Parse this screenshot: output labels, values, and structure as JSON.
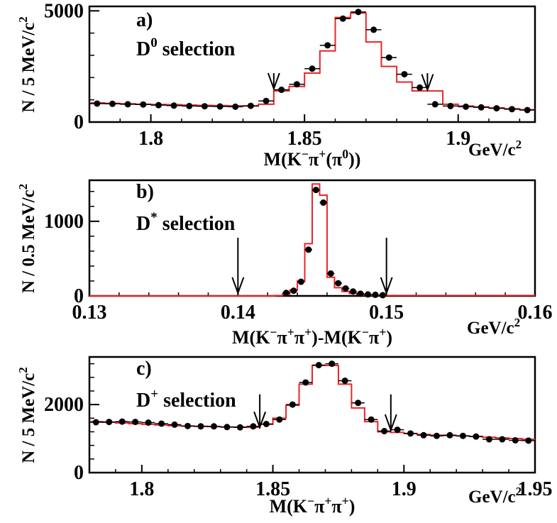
{
  "colors": {
    "histogram": "#e8262a",
    "points": "#000000",
    "frame": "#000000"
  },
  "chart_data": [
    {
      "type": "line",
      "panel_label": "a)",
      "title_main": "D",
      "title_sup": "0",
      "title_rest": " selection",
      "xlabel_parts": [
        {
          "t": "M(K"
        },
        {
          "t": "−",
          "sup": true
        },
        {
          "t": "π"
        },
        {
          "t": "+",
          "sup": true
        },
        {
          "t": "(π"
        },
        {
          "t": "0",
          "sup": true
        },
        {
          "t": "))"
        }
      ],
      "units_parts": [
        {
          "t": "GeV/c"
        },
        {
          "t": "2",
          "sup": true
        }
      ],
      "ylabel_parts": [
        {
          "t": "N / 5 MeV/c"
        },
        {
          "t": "2",
          "sup": true
        }
      ],
      "xlim": [
        1.78,
        1.925
      ],
      "ylim": [
        0,
        5200
      ],
      "xticks": [
        1.8,
        1.85,
        1.9
      ],
      "xtick_labels": [
        "1.8",
        "1.85",
        "1.9"
      ],
      "minor_step": 0.01,
      "yticks": [
        0,
        5000
      ],
      "ytick_labels": [
        "0",
        "5000"
      ],
      "arrows": [
        {
          "x": 1.84,
          "y_top": 2200,
          "y_tip": 1500
        },
        {
          "x": 1.89,
          "y_top": 2200,
          "y_tip": 1450
        }
      ],
      "histogram": {
        "edges": [
          1.78,
          1.785,
          1.79,
          1.795,
          1.8,
          1.805,
          1.81,
          1.815,
          1.82,
          1.825,
          1.83,
          1.835,
          1.84,
          1.845,
          1.85,
          1.855,
          1.86,
          1.865,
          1.87,
          1.875,
          1.88,
          1.885,
          1.89,
          1.895,
          1.9,
          1.905,
          1.91,
          1.915,
          1.92,
          1.925
        ],
        "values": [
          860,
          840,
          820,
          800,
          790,
          780,
          760,
          750,
          740,
          730,
          720,
          800,
          1400,
          1600,
          2200,
          3200,
          4700,
          4900,
          3600,
          2500,
          1800,
          1400,
          1400,
          800,
          720,
          680,
          640,
          600,
          560
        ]
      },
      "points": {
        "x": [
          1.7825,
          1.7875,
          1.7925,
          1.7975,
          1.8025,
          1.8075,
          1.8125,
          1.8175,
          1.8225,
          1.8275,
          1.8325,
          1.8375,
          1.8425,
          1.8475,
          1.8525,
          1.8575,
          1.8625,
          1.8675,
          1.8725,
          1.8775,
          1.8825,
          1.8875,
          1.8925,
          1.8975,
          1.9025,
          1.9075,
          1.9125,
          1.9175,
          1.9225
        ],
        "y": [
          830,
          820,
          800,
          790,
          760,
          740,
          720,
          710,
          700,
          690,
          730,
          950,
          1450,
          1700,
          2400,
          3450,
          4650,
          4950,
          4150,
          2900,
          2150,
          1550,
          800,
          720,
          690,
          660,
          620,
          580,
          540
        ]
      }
    },
    {
      "type": "line",
      "panel_label": "b)",
      "title_main": "D",
      "title_sup": "*",
      "title_rest": " selection",
      "xlabel_parts": [
        {
          "t": "M(K"
        },
        {
          "t": "−",
          "sup": true
        },
        {
          "t": "π"
        },
        {
          "t": "+",
          "sup": true
        },
        {
          "t": "π"
        },
        {
          "t": "+",
          "sup": true
        },
        {
          "t": ")-M(K"
        },
        {
          "t": "−",
          "sup": true
        },
        {
          "t": "π"
        },
        {
          "t": "+",
          "sup": true
        },
        {
          "t": ")"
        }
      ],
      "units_parts": [
        {
          "t": "GeV/c"
        },
        {
          "t": "2",
          "sup": true
        }
      ],
      "ylabel_parts": [
        {
          "t": "N / 0.5 MeV/c"
        },
        {
          "t": "2",
          "sup": true
        }
      ],
      "xlim": [
        0.13,
        0.16
      ],
      "ylim": [
        0,
        1550
      ],
      "xticks": [
        0.13,
        0.14,
        0.15,
        0.16
      ],
      "xtick_labels": [
        "0.13",
        "0.14",
        "0.15",
        "0.16"
      ],
      "minor_step": 0.002,
      "yticks": [
        0,
        1000
      ],
      "ytick_labels": [
        "0",
        "1000"
      ],
      "arrows": [
        {
          "x": 0.14,
          "y_top": 780,
          "y_tip": 40
        },
        {
          "x": 0.15,
          "y_top": 780,
          "y_tip": 40
        }
      ],
      "histogram": {
        "edges": [
          0.13,
          0.1425,
          0.143,
          0.1435,
          0.144,
          0.1445,
          0.145,
          0.1455,
          0.146,
          0.1465,
          0.147,
          0.1475,
          0.148,
          0.1485,
          0.149,
          0.1495,
          0.16
        ],
        "values": [
          0,
          5,
          25,
          80,
          200,
          700,
          1500,
          1350,
          250,
          110,
          60,
          35,
          20,
          12,
          8,
          6
        ]
      },
      "points": {
        "x": [
          0.14325,
          0.14375,
          0.14425,
          0.14475,
          0.14525,
          0.14575,
          0.14625,
          0.14675,
          0.14725,
          0.14775,
          0.14825,
          0.14875,
          0.14925,
          0.14975
        ],
        "y": [
          40,
          70,
          190,
          620,
          1420,
          1250,
          300,
          170,
          100,
          60,
          30,
          20,
          15,
          10
        ]
      }
    },
    {
      "type": "line",
      "panel_label": "c)",
      "title_main": "D",
      "title_sup": "+",
      "title_rest": " selection",
      "xlabel_parts": [
        {
          "t": "M(K"
        },
        {
          "t": "−",
          "sup": true
        },
        {
          "t": "π"
        },
        {
          "t": "+",
          "sup": true
        },
        {
          "t": "π"
        },
        {
          "t": "+",
          "sup": true
        },
        {
          "t": ")"
        }
      ],
      "units_parts": [
        {
          "t": "GeV/c"
        },
        {
          "t": "2",
          "sup": true
        }
      ],
      "ylabel_parts": [
        {
          "t": "N / 5 MeV/c"
        },
        {
          "t": "2",
          "sup": true
        }
      ],
      "xlim": [
        1.78,
        1.95
      ],
      "ylim": [
        0,
        3400
      ],
      "xticks": [
        1.8,
        1.85,
        1.9,
        1.95
      ],
      "xtick_labels": [
        "1.8",
        "1.85",
        "1.9",
        "1.95"
      ],
      "minor_step": 0.01,
      "yticks": [
        0,
        2000
      ],
      "ytick_labels": [
        "0",
        "2000"
      ],
      "arrows": [
        {
          "x": 1.845,
          "y_top": 2300,
          "y_tip": 1330
        },
        {
          "x": 1.895,
          "y_top": 2300,
          "y_tip": 1250
        }
      ],
      "histogram": {
        "edges": [
          1.78,
          1.785,
          1.79,
          1.795,
          1.8,
          1.805,
          1.81,
          1.815,
          1.82,
          1.825,
          1.83,
          1.835,
          1.84,
          1.845,
          1.85,
          1.855,
          1.86,
          1.865,
          1.87,
          1.875,
          1.88,
          1.885,
          1.89,
          1.895,
          1.9,
          1.905,
          1.91,
          1.915,
          1.92,
          1.925,
          1.93,
          1.935,
          1.94,
          1.945,
          1.95
        ],
        "values": [
          1500,
          1480,
          1460,
          1440,
          1420,
          1400,
          1380,
          1370,
          1360,
          1350,
          1340,
          1340,
          1330,
          1420,
          1600,
          1980,
          2600,
          3150,
          3150,
          2600,
          1900,
          1500,
          1200,
          1180,
          1150,
          1120,
          1100,
          1090,
          1080,
          1060,
          1040,
          1020,
          1000,
          980
        ]
      },
      "points": {
        "x": [
          1.7825,
          1.7875,
          1.7925,
          1.7975,
          1.8025,
          1.8075,
          1.8125,
          1.8175,
          1.8225,
          1.8275,
          1.8325,
          1.8375,
          1.8425,
          1.8475,
          1.8525,
          1.8575,
          1.8625,
          1.8675,
          1.8725,
          1.8775,
          1.8825,
          1.8875,
          1.8925,
          1.8975,
          1.9025,
          1.9075,
          1.9125,
          1.9175,
          1.9225,
          1.9275,
          1.9325,
          1.9375,
          1.9425,
          1.9475
        ],
        "y": [
          1480,
          1490,
          1500,
          1490,
          1470,
          1440,
          1410,
          1370,
          1360,
          1360,
          1340,
          1330,
          1360,
          1430,
          1560,
          2000,
          2650,
          3160,
          3200,
          2700,
          2050,
          1560,
          1220,
          1260,
          1150,
          1100,
          1080,
          1100,
          1080,
          1060,
          980,
          980,
          950,
          940
        ]
      }
    }
  ]
}
